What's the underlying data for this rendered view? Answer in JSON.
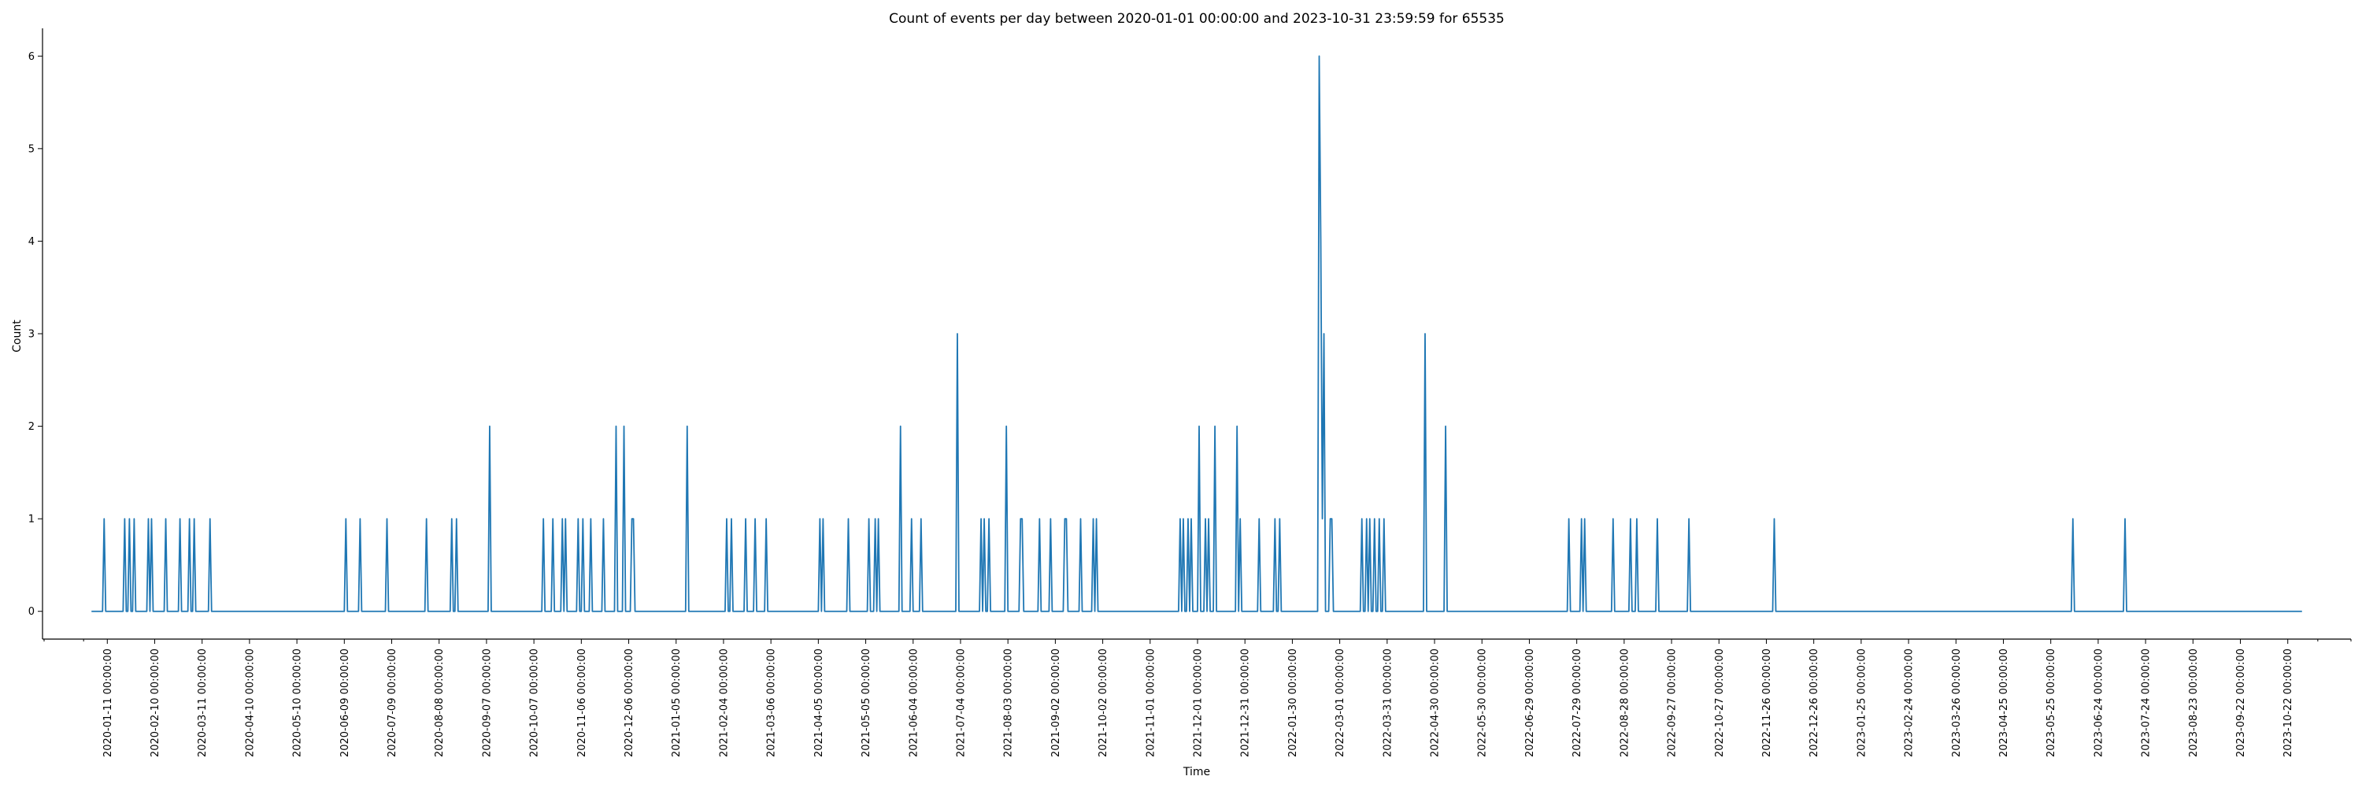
{
  "chart_data": {
    "type": "line",
    "title": "Count of events per day between 2020-01-01 00:00:00 and 2023-10-31 23:59:59 for 65535",
    "xlabel": "Time",
    "ylabel": "Count",
    "xlim": [
      "2019-12-01",
      "2023-12-01"
    ],
    "ylim": [
      -0.3,
      6.3
    ],
    "grid": false,
    "line_color": "#1f77b4",
    "y_ticks": [
      0,
      1,
      2,
      3,
      4,
      5,
      6
    ],
    "y_tick_labels": [
      "0",
      "1",
      "2",
      "3",
      "4",
      "5",
      "6"
    ],
    "x_ticks": [
      "2020-01-11",
      "2020-02-10",
      "2020-03-11",
      "2020-04-10",
      "2020-05-10",
      "2020-06-09",
      "2020-07-09",
      "2020-08-08",
      "2020-09-07",
      "2020-10-07",
      "2020-11-06",
      "2020-12-06",
      "2021-01-05",
      "2021-02-04",
      "2021-03-06",
      "2021-04-05",
      "2021-05-05",
      "2021-06-04",
      "2021-07-04",
      "2021-08-03",
      "2021-09-02",
      "2021-10-02",
      "2021-11-01",
      "2021-12-01",
      "2021-12-31",
      "2022-01-30",
      "2022-03-01",
      "2022-03-31",
      "2022-04-30",
      "2022-05-30",
      "2022-06-29",
      "2022-07-29",
      "2022-08-28",
      "2022-09-27",
      "2022-10-27",
      "2022-11-26",
      "2022-12-26",
      "2023-01-25",
      "2023-02-24",
      "2023-03-26",
      "2023-04-25",
      "2023-05-25",
      "2023-06-24",
      "2023-07-24",
      "2023-08-23",
      "2023-09-22",
      "2023-10-22"
    ],
    "x_tick_labels": [
      "2020-01-11 00:00:00",
      "2020-02-10 00:00:00",
      "2020-03-11 00:00:00",
      "2020-04-10 00:00:00",
      "2020-05-10 00:00:00",
      "2020-06-09 00:00:00",
      "2020-07-09 00:00:00",
      "2020-08-08 00:00:00",
      "2020-09-07 00:00:00",
      "2020-10-07 00:00:00",
      "2020-11-06 00:00:00",
      "2020-12-06 00:00:00",
      "2021-01-05 00:00:00",
      "2021-02-04 00:00:00",
      "2021-03-06 00:00:00",
      "2021-04-05 00:00:00",
      "2021-05-05 00:00:00",
      "2021-06-04 00:00:00",
      "2021-07-04 00:00:00",
      "2021-08-03 00:00:00",
      "2021-09-02 00:00:00",
      "2021-10-02 00:00:00",
      "2021-11-01 00:00:00",
      "2021-12-01 00:00:00",
      "2021-12-31 00:00:00",
      "2022-01-30 00:00:00",
      "2022-03-01 00:00:00",
      "2022-03-31 00:00:00",
      "2022-04-30 00:00:00",
      "2022-05-30 00:00:00",
      "2022-06-29 00:00:00",
      "2022-07-29 00:00:00",
      "2022-08-28 00:00:00",
      "2022-09-27 00:00:00",
      "2022-10-27 00:00:00",
      "2022-11-26 00:00:00",
      "2022-12-26 00:00:00",
      "2023-01-25 00:00:00",
      "2023-02-24 00:00:00",
      "2023-03-26 00:00:00",
      "2023-04-25 00:00:00",
      "2023-05-25 00:00:00",
      "2023-06-24 00:00:00",
      "2023-07-24 00:00:00",
      "2023-08-23 00:00:00",
      "2023-09-22 00:00:00",
      "2023-10-22 00:00:00"
    ],
    "x_range": [
      "2020-01-01",
      "2023-10-31"
    ],
    "series": [
      {
        "points": [
          [
            "2020-01-09",
            1
          ],
          [
            "2020-01-22",
            1
          ],
          [
            "2020-01-25",
            1
          ],
          [
            "2020-01-28",
            1
          ],
          [
            "2020-02-06",
            1
          ],
          [
            "2020-02-08",
            1
          ],
          [
            "2020-02-17",
            1
          ],
          [
            "2020-02-26",
            1
          ],
          [
            "2020-03-03",
            1
          ],
          [
            "2020-03-06",
            1
          ],
          [
            "2020-03-16",
            1
          ],
          [
            "2020-06-10",
            1
          ],
          [
            "2020-06-19",
            1
          ],
          [
            "2020-07-06",
            1
          ],
          [
            "2020-07-31",
            1
          ],
          [
            "2020-08-16",
            1
          ],
          [
            "2020-08-19",
            1
          ],
          [
            "2020-09-09",
            2
          ],
          [
            "2020-10-13",
            1
          ],
          [
            "2020-10-19",
            1
          ],
          [
            "2020-10-25",
            1
          ],
          [
            "2020-10-27",
            1
          ],
          [
            "2020-11-04",
            1
          ],
          [
            "2020-11-07",
            1
          ],
          [
            "2020-11-12",
            1
          ],
          [
            "2020-11-20",
            1
          ],
          [
            "2020-11-28",
            2
          ],
          [
            "2020-12-03",
            2
          ],
          [
            "2020-12-08",
            1
          ],
          [
            "2020-12-09",
            1
          ],
          [
            "2021-01-12",
            2
          ],
          [
            "2021-02-06",
            1
          ],
          [
            "2021-02-09",
            1
          ],
          [
            "2021-02-18",
            1
          ],
          [
            "2021-02-24",
            1
          ],
          [
            "2021-03-03",
            1
          ],
          [
            "2021-04-06",
            1
          ],
          [
            "2021-04-08",
            1
          ],
          [
            "2021-04-24",
            1
          ],
          [
            "2021-05-07",
            1
          ],
          [
            "2021-05-11",
            1
          ],
          [
            "2021-05-13",
            1
          ],
          [
            "2021-05-27",
            2
          ],
          [
            "2021-06-03",
            1
          ],
          [
            "2021-06-09",
            1
          ],
          [
            "2021-07-02",
            3
          ],
          [
            "2021-07-17",
            1
          ],
          [
            "2021-07-19",
            1
          ],
          [
            "2021-07-22",
            1
          ],
          [
            "2021-08-02",
            2
          ],
          [
            "2021-08-11",
            1
          ],
          [
            "2021-08-12",
            1
          ],
          [
            "2021-08-23",
            1
          ],
          [
            "2021-08-30",
            1
          ],
          [
            "2021-09-08",
            1
          ],
          [
            "2021-09-09",
            1
          ],
          [
            "2021-09-18",
            1
          ],
          [
            "2021-09-26",
            1
          ],
          [
            "2021-09-28",
            1
          ],
          [
            "2021-11-20",
            1
          ],
          [
            "2021-11-22",
            1
          ],
          [
            "2021-11-25",
            1
          ],
          [
            "2021-11-27",
            1
          ],
          [
            "2021-12-02",
            2
          ],
          [
            "2021-12-06",
            1
          ],
          [
            "2021-12-08",
            1
          ],
          [
            "2021-12-12",
            2
          ],
          [
            "2021-12-26",
            2
          ],
          [
            "2021-12-28",
            1
          ],
          [
            "2022-01-09",
            1
          ],
          [
            "2022-01-19",
            1
          ],
          [
            "2022-01-22",
            1
          ],
          [
            "2022-02-16",
            6
          ],
          [
            "2022-02-17",
            4
          ],
          [
            "2022-02-18",
            1
          ],
          [
            "2022-02-19",
            3
          ],
          [
            "2022-02-23",
            1
          ],
          [
            "2022-02-24",
            1
          ],
          [
            "2022-03-15",
            1
          ],
          [
            "2022-03-18",
            1
          ],
          [
            "2022-03-20",
            1
          ],
          [
            "2022-03-23",
            1
          ],
          [
            "2022-03-26",
            1
          ],
          [
            "2022-03-29",
            1
          ],
          [
            "2022-04-24",
            3
          ],
          [
            "2022-05-07",
            2
          ],
          [
            "2022-07-24",
            1
          ],
          [
            "2022-08-01",
            1
          ],
          [
            "2022-08-03",
            1
          ],
          [
            "2022-08-21",
            1
          ],
          [
            "2022-09-01",
            1
          ],
          [
            "2022-09-05",
            1
          ],
          [
            "2022-09-18",
            1
          ],
          [
            "2022-10-08",
            1
          ],
          [
            "2022-12-01",
            1
          ],
          [
            "2023-06-08",
            1
          ],
          [
            "2023-07-11",
            1
          ]
        ]
      }
    ]
  }
}
